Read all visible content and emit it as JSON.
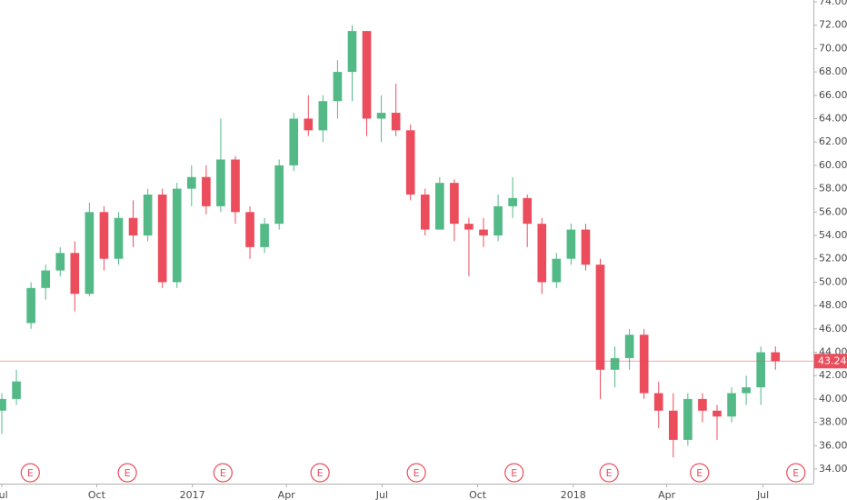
{
  "chart_data": {
    "type": "candlestick",
    "up_color": "#53b987",
    "down_color": "#eb4d5c",
    "x": [
      0,
      2,
      4,
      6,
      8,
      10,
      12,
      14,
      16,
      18,
      20,
      22,
      24,
      26,
      28,
      30,
      32,
      34,
      36,
      38,
      40,
      42,
      44,
      46,
      48,
      50,
      52,
      54,
      56,
      58,
      60,
      62,
      64,
      66,
      68,
      70,
      72,
      74,
      76,
      78,
      80,
      82,
      84,
      86,
      88,
      90,
      92,
      94,
      96,
      98,
      100,
      102,
      104,
      106
    ],
    "open": [
      39,
      40,
      46.5,
      49.5,
      51,
      52.5,
      49,
      56,
      52,
      55.5,
      54,
      57.5,
      50,
      58,
      59,
      56.5,
      60.5,
      56,
      53,
      55,
      60,
      64,
      63,
      65.5,
      68,
      71.5,
      64,
      64.5,
      63,
      57.5,
      54.5,
      58.5,
      55,
      54.5,
      54,
      56.5,
      57.2,
      55,
      50,
      52,
      54.5,
      51.5,
      42.5,
      43.5,
      45.5,
      40.5,
      39,
      36.5,
      40,
      39,
      38.5,
      40.5,
      41,
      44
    ],
    "high": [
      40.5,
      42.5,
      50,
      51.5,
      53,
      53.5,
      56.8,
      56.5,
      56,
      57,
      58,
      58,
      58.5,
      60,
      60,
      64,
      60.8,
      56.5,
      55.5,
      60.5,
      64.5,
      66,
      66,
      69,
      72,
      71.5,
      66,
      67,
      63.5,
      58,
      59,
      58.8,
      55.5,
      55.5,
      57.5,
      59,
      57.5,
      55.5,
      52.5,
      55,
      55,
      52,
      44.5,
      46,
      46,
      41.5,
      40.5,
      40.5,
      40.5,
      39.5,
      41,
      42,
      44.5,
      44.5
    ],
    "low": [
      37,
      39.5,
      46,
      48.5,
      50.5,
      47.5,
      48.8,
      51,
      51.5,
      53,
      53.5,
      49.5,
      49.5,
      56.5,
      55.8,
      56,
      55,
      52,
      52.5,
      54.5,
      59.5,
      62.5,
      62,
      64,
      65.5,
      62.5,
      62,
      62.5,
      57,
      54,
      54.5,
      53.5,
      50.5,
      53,
      53.5,
      55.5,
      53,
      49,
      49.5,
      51.5,
      51,
      40,
      41,
      42.5,
      40,
      37.5,
      35,
      36,
      38,
      36.5,
      38,
      39.5,
      39.5,
      42.5
    ],
    "close": [
      40,
      41.5,
      49.5,
      51,
      52.5,
      49,
      56,
      52,
      55.5,
      54,
      57.5,
      50,
      58,
      59,
      56.5,
      60.5,
      56,
      53,
      55,
      60,
      64,
      63,
      65.5,
      68,
      71.5,
      64,
      64.5,
      63,
      57.5,
      54.5,
      58.5,
      55,
      54.5,
      54,
      56.5,
      57.2,
      55,
      50,
      52,
      54.5,
      51.5,
      42.5,
      43.5,
      45.5,
      40.5,
      39,
      36.5,
      40,
      39,
      38.5,
      40.5,
      41,
      44,
      43.24
    ],
    "xlim": [
      -0.25,
      111.2
    ],
    "xticks": [
      {
        "value": 0,
        "label": "Jul"
      },
      {
        "value": 13,
        "label": "Oct"
      },
      {
        "value": 26.1,
        "label": "2017"
      },
      {
        "value": 39,
        "label": "Apr"
      },
      {
        "value": 52.1,
        "label": "Jul"
      },
      {
        "value": 65.2,
        "label": "Oct"
      },
      {
        "value": 78.3,
        "label": "2018"
      },
      {
        "value": 91.1,
        "label": "Apr"
      },
      {
        "value": 104.3,
        "label": "Jul"
      }
    ],
    "ylim": [
      34,
      74
    ],
    "yticks": [
      {
        "value": 34,
        "label": "34.00"
      },
      {
        "value": 36,
        "label": "36.00"
      },
      {
        "value": 38,
        "label": "38.00"
      },
      {
        "value": 40,
        "label": "40.00"
      },
      {
        "value": 42,
        "label": "42.00"
      },
      {
        "value": 44,
        "label": "44.00"
      },
      {
        "value": 46,
        "label": "46.00"
      },
      {
        "value": 48,
        "label": "48.00"
      },
      {
        "value": 50,
        "label": "50.00"
      },
      {
        "value": 52,
        "label": "52.00"
      },
      {
        "value": 54,
        "label": "54.00"
      },
      {
        "value": 56,
        "label": "56.00"
      },
      {
        "value": 58,
        "label": "58.00"
      },
      {
        "value": 60,
        "label": "60.00"
      },
      {
        "value": 62,
        "label": "62.00"
      },
      {
        "value": 64,
        "label": "64.00"
      },
      {
        "value": 66,
        "label": "66.00"
      },
      {
        "value": 68,
        "label": "68.00"
      },
      {
        "value": 70,
        "label": "70.00"
      },
      {
        "value": 72,
        "label": "72.00"
      },
      {
        "value": 74,
        "label": "74.00"
      }
    ],
    "last_price": 43.24,
    "last_color": "#eb4d5c",
    "events": [
      {
        "x": 3.9,
        "label": "E"
      },
      {
        "x": 17.2,
        "label": "E"
      },
      {
        "x": 30.3,
        "label": "E"
      },
      {
        "x": 43.6,
        "label": "E"
      },
      {
        "x": 56.8,
        "label": "E"
      },
      {
        "x": 70.2,
        "label": "E"
      },
      {
        "x": 83.2,
        "label": "E"
      },
      {
        "x": 95.6,
        "label": "E"
      },
      {
        "x": 108.8,
        "label": "E"
      }
    ]
  }
}
